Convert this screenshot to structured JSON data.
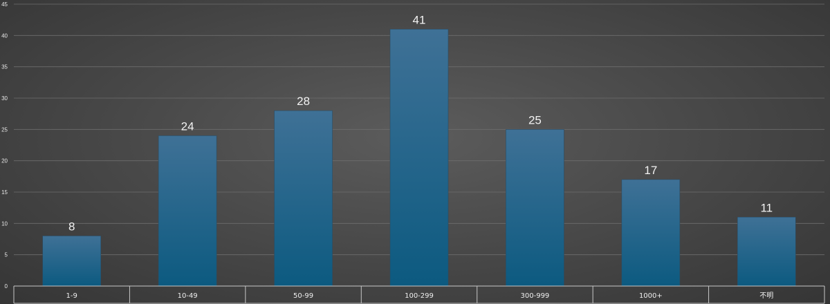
{
  "chart_data": {
    "type": "bar",
    "categories": [
      "1-9",
      "10-49",
      "50-99",
      "100-299",
      "300-999",
      "1000+",
      "不明"
    ],
    "values": [
      8,
      24,
      28,
      41,
      25,
      17,
      11
    ],
    "title": "",
    "xlabel": "",
    "ylabel": "",
    "ylim": [
      0,
      45
    ],
    "yticks": [
      "0",
      "5",
      "10",
      "15",
      "20",
      "25",
      "30",
      "35",
      "40",
      "45"
    ],
    "grid": true,
    "legend": "none",
    "bar_color_top": "#3f7196",
    "bar_color_bottom": "#0c5a80",
    "background_color": "#4b4b4b",
    "text_color": "#f0f0f0"
  }
}
